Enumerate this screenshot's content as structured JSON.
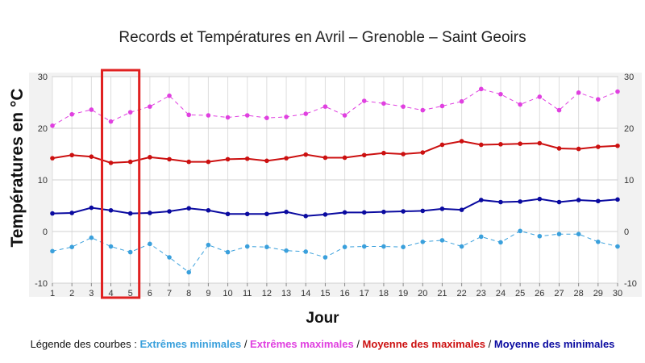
{
  "chart_data": {
    "type": "line",
    "title": "Records et Températures en Avril – Grenoble – Saint Geoirs",
    "xlabel": "Jour",
    "ylabel": "Températures en °C",
    "x": [
      1,
      2,
      3,
      4,
      5,
      6,
      7,
      8,
      9,
      10,
      11,
      12,
      13,
      14,
      15,
      16,
      17,
      18,
      19,
      20,
      21,
      22,
      23,
      24,
      25,
      26,
      27,
      28,
      29,
      30
    ],
    "xlim": [
      1,
      30
    ],
    "ylim": [
      -10,
      30
    ],
    "yticks": [
      30,
      20,
      10,
      0,
      -10
    ],
    "grid": true,
    "highlight": {
      "x_from": 4,
      "x_to": 5,
      "color": "#e02020"
    },
    "series": [
      {
        "name": "Extrêmes minimales",
        "color": "#3aa0dc",
        "style": "dashed",
        "values": [
          -3.8,
          -3,
          -1.2,
          -2.9,
          -4,
          -2.4,
          -5,
          -7.9,
          -2.6,
          -4,
          -2.9,
          -3,
          -3.7,
          -3.9,
          -5,
          -3,
          -2.9,
          -2.9,
          -3,
          -2,
          -1.7,
          -2.9,
          -1,
          -2.1,
          0.1,
          -0.9,
          -0.5,
          -0.5,
          -2,
          -2.9
        ]
      },
      {
        "name": "Extrêmes maximales",
        "color": "#e040e0",
        "style": "dashed",
        "values": [
          20.5,
          22.7,
          23.6,
          21.3,
          23.1,
          24.2,
          26.3,
          22.6,
          22.5,
          22.1,
          22.5,
          22,
          22.2,
          22.8,
          24.2,
          22.5,
          25.3,
          24.8,
          24.2,
          23.5,
          24.3,
          25.2,
          27.6,
          26.6,
          24.6,
          26.1,
          23.5,
          26.9,
          25.6,
          27.1
        ]
      },
      {
        "name": "Moyenne des maximales",
        "color": "#cc1010",
        "style": "solid",
        "values": [
          14.2,
          14.8,
          14.5,
          13.3,
          13.5,
          14.4,
          14,
          13.5,
          13.5,
          14,
          14.1,
          13.7,
          14.2,
          14.9,
          14.3,
          14.3,
          14.8,
          15.2,
          15,
          15.3,
          16.8,
          17.5,
          16.8,
          16.9,
          17,
          17.1,
          16.1,
          16,
          16.4,
          16.6
        ]
      },
      {
        "name": "Moyenne des minimales",
        "color": "#0a0aa0",
        "style": "solid",
        "values": [
          3.5,
          3.6,
          4.6,
          4.1,
          3.5,
          3.6,
          3.9,
          4.5,
          4.1,
          3.4,
          3.4,
          3.4,
          3.8,
          3,
          3.3,
          3.7,
          3.7,
          3.8,
          3.9,
          4,
          4.4,
          4.2,
          6.1,
          5.7,
          5.8,
          6.3,
          5.7,
          6.1,
          5.9,
          6.2
        ]
      }
    ]
  },
  "legend_line": {
    "prefix": "Légende des courbes : ",
    "separator": " / ",
    "items": [
      {
        "label": "Extrêmes minimales",
        "color": "#3aa0dc"
      },
      {
        "label": "Extrêmes maximales",
        "color": "#e040e0"
      },
      {
        "label": "Moyenne des maximales",
        "color": "#cc1010"
      },
      {
        "label": "Moyenne des minimales",
        "color": "#0a0aa0"
      }
    ]
  }
}
